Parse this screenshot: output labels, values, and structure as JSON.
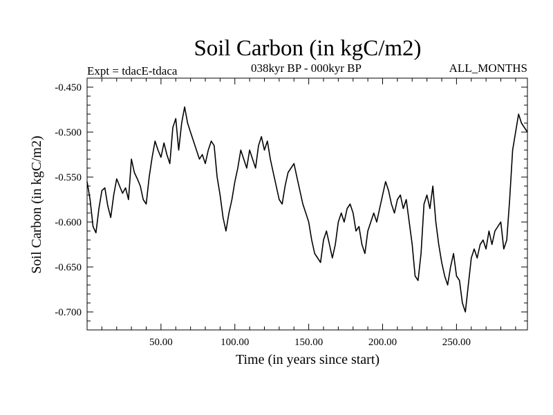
{
  "chart_data": {
    "type": "line",
    "title": "Soil Carbon (in kgC/m2)",
    "subtitle_left": "Expt = tdacE-tdaca",
    "subtitle_center": "038kyr BP - 000kyr BP",
    "subtitle_right": "ALL_MONTHS",
    "xlabel": "Time (in years since start)",
    "ylabel": "Soil Carbon (in kgC/m2)",
    "xlim": [
      0,
      298
    ],
    "ylim": [
      -0.72,
      -0.44
    ],
    "xticks": [
      50,
      100,
      150,
      200,
      250
    ],
    "xtick_labels": [
      "50.00",
      "100.00",
      "150.00",
      "200.00",
      "250.00"
    ],
    "yticks": [
      -0.45,
      -0.5,
      -0.55,
      -0.6,
      -0.65,
      -0.7
    ],
    "ytick_labels": [
      "-0.450",
      "-0.500",
      "-0.550",
      "-0.600",
      "-0.650",
      "-0.700"
    ],
    "grid": false,
    "series": [
      {
        "name": "Soil Carbon",
        "color": "#000000",
        "x": [
          0,
          2,
          4,
          6,
          8,
          10,
          12,
          14,
          16,
          18,
          20,
          22,
          24,
          26,
          28,
          30,
          32,
          34,
          36,
          38,
          40,
          42,
          44,
          46,
          48,
          50,
          52,
          54,
          56,
          58,
          60,
          62,
          64,
          66,
          68,
          70,
          72,
          74,
          76,
          78,
          80,
          82,
          84,
          86,
          88,
          90,
          92,
          94,
          96,
          98,
          100,
          102,
          104,
          106,
          108,
          110,
          112,
          114,
          116,
          118,
          120,
          122,
          124,
          126,
          128,
          130,
          132,
          134,
          136,
          138,
          140,
          142,
          144,
          146,
          148,
          150,
          152,
          154,
          156,
          158,
          160,
          162,
          164,
          166,
          168,
          170,
          172,
          174,
          176,
          178,
          180,
          182,
          184,
          186,
          188,
          190,
          192,
          194,
          196,
          198,
          200,
          202,
          204,
          206,
          208,
          210,
          212,
          214,
          216,
          218,
          220,
          222,
          224,
          226,
          228,
          230,
          232,
          234,
          236,
          238,
          240,
          242,
          244,
          246,
          248,
          250,
          252,
          254,
          256,
          258,
          260,
          262,
          264,
          266,
          268,
          270,
          272,
          274,
          276,
          278,
          280,
          282,
          284,
          286,
          288,
          290,
          292,
          294,
          296,
          298
        ],
        "values": [
          -0.555,
          -0.575,
          -0.605,
          -0.612,
          -0.585,
          -0.565,
          -0.562,
          -0.582,
          -0.595,
          -0.57,
          -0.552,
          -0.56,
          -0.568,
          -0.562,
          -0.575,
          -0.53,
          -0.545,
          -0.552,
          -0.56,
          -0.575,
          -0.58,
          -0.55,
          -0.528,
          -0.51,
          -0.52,
          -0.528,
          -0.512,
          -0.525,
          -0.535,
          -0.495,
          -0.485,
          -0.52,
          -0.49,
          -0.472,
          -0.49,
          -0.5,
          -0.51,
          -0.52,
          -0.53,
          -0.525,
          -0.535,
          -0.52,
          -0.51,
          -0.515,
          -0.55,
          -0.57,
          -0.595,
          -0.61,
          -0.59,
          -0.575,
          -0.555,
          -0.54,
          -0.52,
          -0.53,
          -0.54,
          -0.52,
          -0.53,
          -0.54,
          -0.515,
          -0.505,
          -0.52,
          -0.51,
          -0.53,
          -0.545,
          -0.56,
          -0.575,
          -0.58,
          -0.56,
          -0.545,
          -0.54,
          -0.535,
          -0.55,
          -0.565,
          -0.58,
          -0.59,
          -0.6,
          -0.62,
          -0.635,
          -0.64,
          -0.645,
          -0.62,
          -0.61,
          -0.625,
          -0.64,
          -0.625,
          -0.6,
          -0.59,
          -0.6,
          -0.585,
          -0.58,
          -0.59,
          -0.61,
          -0.605,
          -0.625,
          -0.635,
          -0.61,
          -0.6,
          -0.59,
          -0.6,
          -0.585,
          -0.57,
          -0.555,
          -0.565,
          -0.58,
          -0.59,
          -0.575,
          -0.57,
          -0.585,
          -0.575,
          -0.6,
          -0.625,
          -0.66,
          -0.665,
          -0.635,
          -0.58,
          -0.57,
          -0.585,
          -0.56,
          -0.6,
          -0.625,
          -0.645,
          -0.66,
          -0.67,
          -0.65,
          -0.635,
          -0.66,
          -0.665,
          -0.69,
          -0.7,
          -0.67,
          -0.64,
          -0.63,
          -0.64,
          -0.625,
          -0.62,
          -0.63,
          -0.61,
          -0.625,
          -0.61,
          -0.605,
          -0.6,
          -0.63,
          -0.62,
          -0.575,
          -0.52,
          -0.5,
          -0.48,
          -0.49,
          -0.495,
          -0.5
        ]
      }
    ]
  }
}
